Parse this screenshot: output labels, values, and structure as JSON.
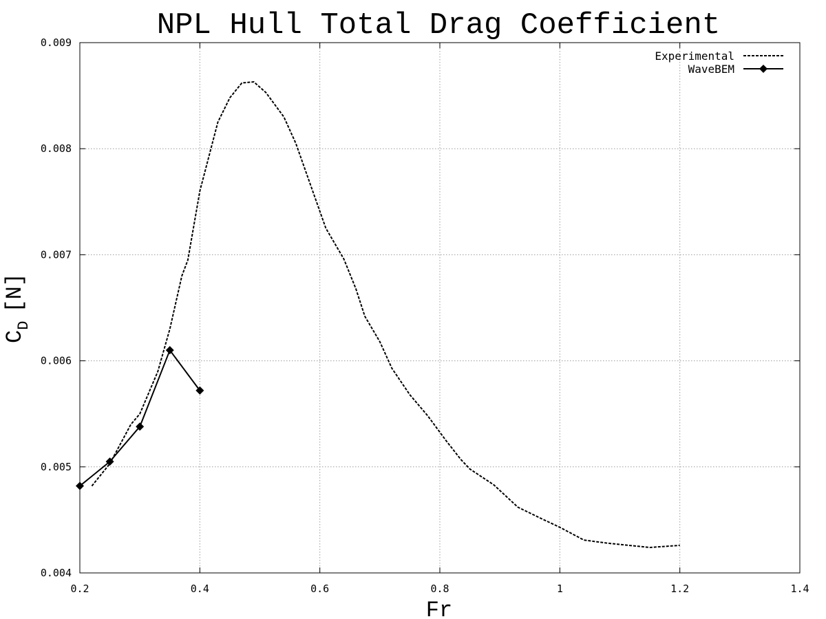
{
  "chart_data": {
    "type": "line",
    "title": "NPL Hull Total Drag Coefficient",
    "xlabel": "Fr",
    "ylabel": "C_D [N]",
    "ylabel_main": "C",
    "ylabel_sub": "D",
    "ylabel_unit": "[N]",
    "xlim": [
      0.2,
      1.4
    ],
    "ylim": [
      0.004,
      0.009
    ],
    "x_ticks": [
      0.2,
      0.4,
      0.6,
      0.8,
      1.0,
      1.2,
      1.4
    ],
    "x_tick_labels": [
      "0.2",
      "0.4",
      "0.6",
      "0.8",
      "1",
      "1.2",
      "1.4"
    ],
    "y_ticks": [
      0.004,
      0.005,
      0.006,
      0.007,
      0.008,
      0.009
    ],
    "y_tick_labels": [
      "0.004",
      "0.005",
      "0.006",
      "0.007",
      "0.008",
      "0.009"
    ],
    "grid": true,
    "legend_position": "top-right",
    "series": [
      {
        "name": "Experimental",
        "style": "dashed",
        "marker": "none",
        "color": "#000000",
        "points": [
          [
            0.22,
            0.00482
          ],
          [
            0.25,
            0.00503
          ],
          [
            0.285,
            0.0054
          ],
          [
            0.3,
            0.0055
          ],
          [
            0.33,
            0.0059
          ],
          [
            0.35,
            0.0063
          ],
          [
            0.37,
            0.0068
          ],
          [
            0.38,
            0.00695
          ],
          [
            0.4,
            0.0076
          ],
          [
            0.43,
            0.00825
          ],
          [
            0.45,
            0.00848
          ],
          [
            0.47,
            0.00862
          ],
          [
            0.49,
            0.00863
          ],
          [
            0.51,
            0.00853
          ],
          [
            0.54,
            0.0083
          ],
          [
            0.56,
            0.00805
          ],
          [
            0.59,
            0.00757
          ],
          [
            0.61,
            0.00725
          ],
          [
            0.64,
            0.00696
          ],
          [
            0.66,
            0.00668
          ],
          [
            0.675,
            0.00642
          ],
          [
            0.7,
            0.00618
          ],
          [
            0.72,
            0.00593
          ],
          [
            0.75,
            0.00568
          ],
          [
            0.78,
            0.00548
          ],
          [
            0.81,
            0.00525
          ],
          [
            0.835,
            0.00507
          ],
          [
            0.85,
            0.00498
          ],
          [
            0.89,
            0.00483
          ],
          [
            0.93,
            0.00462
          ],
          [
            0.97,
            0.00451
          ],
          [
            1.0,
            0.00443
          ],
          [
            1.04,
            0.00431
          ],
          [
            1.08,
            0.00428
          ],
          [
            1.15,
            0.00424
          ],
          [
            1.2,
            0.00426
          ]
        ]
      },
      {
        "name": "WaveBEM",
        "style": "solid",
        "marker": "diamond",
        "color": "#000000",
        "points": [
          [
            0.2,
            0.00482
          ],
          [
            0.25,
            0.00505
          ],
          [
            0.3,
            0.00538
          ],
          [
            0.35,
            0.0061
          ],
          [
            0.4,
            0.00572
          ]
        ]
      }
    ]
  }
}
